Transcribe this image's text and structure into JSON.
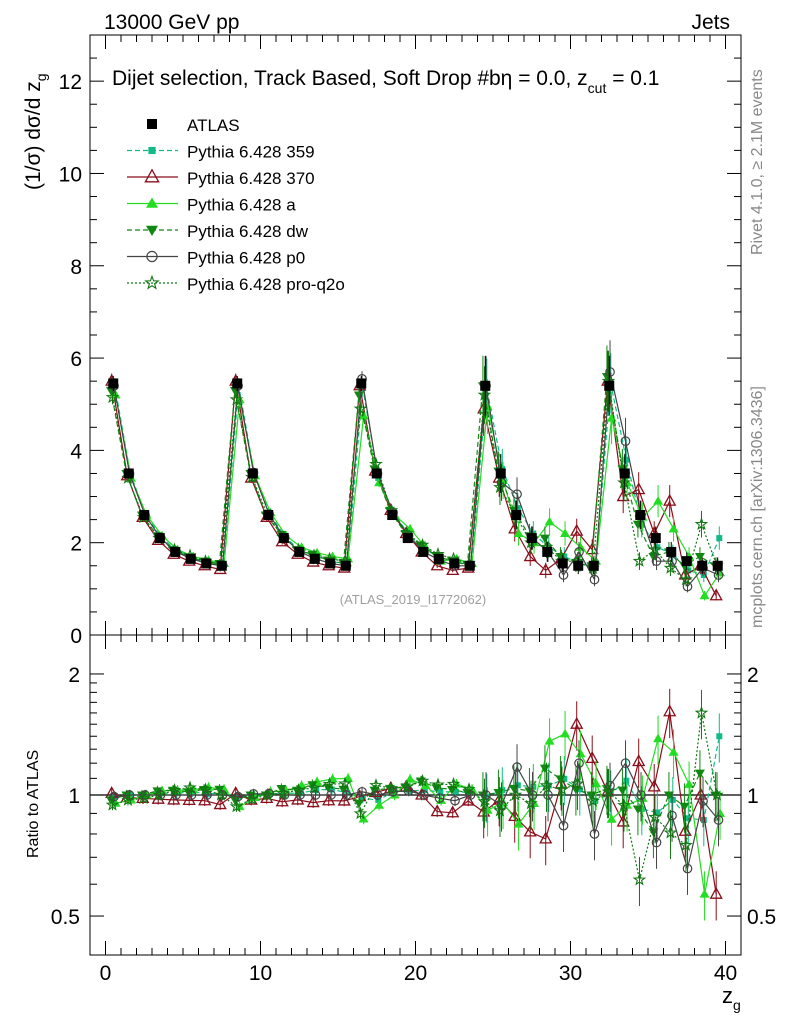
{
  "header": {
    "energy_label": "13000 GeV pp",
    "category_label": "Jets",
    "rivet_label": "Rivet 4.1.0, ≥ 2.1M events",
    "mcplots_label": "mcplots.cern.ch [arXiv:1306.3436]",
    "analysis_id": "(ATLAS_2019_I1772062)"
  },
  "colors": {
    "atlas": "#000000",
    "p359": "#11bb88",
    "p370": "#8b0d1a",
    "pa": "#22dd22",
    "pdw": "#118811",
    "pp0": "#444444",
    "pq2o": "#117711"
  },
  "chart_data": [
    {
      "type": "line",
      "panel": "main",
      "title": "Dijet selection, Track Based, Soft Drop #bη = 0.0, z_cut = 0.1",
      "title_main": "Dijet selection, Track Based, Soft Drop #bη = 0.0, z",
      "title_sub": "cut",
      "title_end": " = 0.1",
      "ylabel": "(1/σ) dσ/d z",
      "ylabel_sub": "g",
      "xlabel": "z",
      "xlabel_sub": "g",
      "xlim": [
        -1,
        41
      ],
      "ylim": [
        0,
        13
      ],
      "y_ticks": [
        "0",
        "2",
        "4",
        "6",
        "8",
        "10",
        "12"
      ],
      "x": [
        0.5,
        1.5,
        2.5,
        3.5,
        4.5,
        5.5,
        6.5,
        7.5,
        8.5,
        9.5,
        10.5,
        11.5,
        12.5,
        13.5,
        14.5,
        15.5,
        16.5,
        17.5,
        18.5,
        19.5,
        20.5,
        21.5,
        22.5,
        23.5,
        24.5,
        25.5,
        26.5,
        27.5,
        28.5,
        29.5,
        30.5,
        31.5,
        32.5,
        33.5,
        34.5,
        35.5,
        36.5,
        37.5,
        38.5,
        39.5
      ],
      "legend": [
        {
          "key": "atlas",
          "label": "ATLAS"
        },
        {
          "key": "p359",
          "label": "Pythia 6.428 359"
        },
        {
          "key": "p370",
          "label": "Pythia 6.428 370"
        },
        {
          "key": "pa",
          "label": "Pythia 6.428 a"
        },
        {
          "key": "pdw",
          "label": "Pythia 6.428 dw"
        },
        {
          "key": "pp0",
          "label": "Pythia 6.428 p0"
        },
        {
          "key": "pq2o",
          "label": "Pythia 6.428 pro-q2o"
        }
      ],
      "series": [
        {
          "key": "atlas",
          "name": "ATLAS",
          "values": [
            5.45,
            3.5,
            2.6,
            2.1,
            1.8,
            1.65,
            1.55,
            1.5,
            5.45,
            3.5,
            2.6,
            2.1,
            1.8,
            1.65,
            1.55,
            1.5,
            5.45,
            3.5,
            2.6,
            2.1,
            1.8,
            1.65,
            1.55,
            1.5,
            5.4,
            3.5,
            2.6,
            2.1,
            1.8,
            1.55,
            1.5,
            1.5,
            5.4,
            3.5,
            2.6,
            2.1,
            1.8,
            1.6,
            1.5,
            1.5
          ]
        },
        {
          "key": "p359",
          "name": "Pythia 6.428 359",
          "values": [
            5.4,
            3.5,
            2.6,
            2.12,
            1.82,
            1.68,
            1.56,
            1.52,
            5.4,
            3.48,
            2.62,
            2.12,
            1.82,
            1.7,
            1.6,
            1.52,
            5.35,
            3.4,
            2.65,
            2.15,
            1.85,
            1.68,
            1.58,
            1.52,
            5.35,
            3.6,
            2.75,
            2.2,
            1.9,
            1.7,
            1.55,
            1.45,
            5.45,
            3.8,
            2.4,
            1.9,
            1.75,
            1.4,
            1.3,
            2.1
          ]
        },
        {
          "key": "p370",
          "name": "Pythia 6.428 370",
          "values": [
            5.5,
            3.45,
            2.55,
            2.05,
            1.75,
            1.6,
            1.5,
            1.42,
            5.5,
            3.4,
            2.55,
            2.02,
            1.75,
            1.58,
            1.5,
            1.45,
            5.4,
            3.55,
            2.7,
            2.2,
            1.8,
            1.5,
            1.4,
            1.45,
            4.9,
            3.4,
            2.3,
            1.7,
            1.4,
            1.65,
            2.25,
            1.85,
            5.5,
            3.0,
            3.15,
            2.2,
            2.9,
            1.3,
            1.5,
            0.85
          ]
        },
        {
          "key": "pa",
          "name": "Pythia 6.428 a",
          "values": [
            5.2,
            3.4,
            2.6,
            2.15,
            1.85,
            1.7,
            1.62,
            1.55,
            5.1,
            3.45,
            2.65,
            2.15,
            1.9,
            1.78,
            1.7,
            1.65,
            4.75,
            3.3,
            2.6,
            2.3,
            1.9,
            1.6,
            1.65,
            1.55,
            4.95,
            3.35,
            2.2,
            2.0,
            2.45,
            2.2,
            1.9,
            1.6,
            4.7,
            3.3,
            2.55,
            2.9,
            2.3,
            1.7,
            0.85,
            1.35
          ]
        },
        {
          "key": "pdw",
          "name": "Pythia 6.428 dw",
          "values": [
            5.3,
            3.5,
            2.6,
            2.15,
            1.85,
            1.68,
            1.6,
            1.55,
            5.3,
            3.5,
            2.6,
            2.18,
            1.85,
            1.75,
            1.62,
            1.55,
            5.2,
            3.6,
            2.7,
            2.2,
            1.95,
            1.72,
            1.6,
            1.52,
            5.4,
            3.55,
            2.7,
            2.15,
            2.1,
            1.7,
            1.55,
            1.5,
            5.6,
            3.6,
            2.4,
            1.7,
            1.8,
            1.5,
            1.7,
            1.5
          ]
        },
        {
          "key": "pp0",
          "name": "Pythia 6.428 p0",
          "values": [
            5.4,
            3.5,
            2.6,
            2.1,
            1.8,
            1.65,
            1.55,
            1.5,
            5.4,
            3.52,
            2.62,
            2.1,
            1.8,
            1.65,
            1.55,
            1.5,
            5.55,
            3.5,
            2.65,
            2.15,
            1.8,
            1.62,
            1.5,
            1.5,
            5.4,
            3.3,
            3.05,
            2.1,
            1.8,
            1.3,
            1.8,
            1.2,
            5.7,
            4.2,
            2.6,
            1.6,
            1.6,
            1.05,
            1.45,
            1.3
          ]
        },
        {
          "key": "pq2o",
          "name": "Pythia 6.428 pro-q2o",
          "values": [
            5.15,
            3.4,
            2.55,
            2.1,
            1.85,
            1.72,
            1.6,
            1.5,
            5.1,
            3.42,
            2.6,
            2.12,
            1.85,
            1.72,
            1.65,
            1.6,
            4.9,
            3.7,
            2.7,
            2.2,
            1.95,
            1.75,
            1.65,
            1.55,
            5.2,
            3.2,
            2.6,
            2.0,
            1.9,
            1.6,
            1.6,
            1.45,
            5.5,
            3.3,
            1.6,
            1.85,
            1.45,
            1.2,
            2.4,
            1.5
          ]
        }
      ]
    },
    {
      "type": "line",
      "panel": "ratio",
      "ylabel": "Ratio to ATLAS",
      "ylim": [
        0.4,
        2.5
      ],
      "y_ticks": [
        "0.5",
        "1",
        "2"
      ],
      "x_ticks": [
        "0",
        "10",
        "20",
        "30",
        "40"
      ],
      "reference": 1
    }
  ]
}
